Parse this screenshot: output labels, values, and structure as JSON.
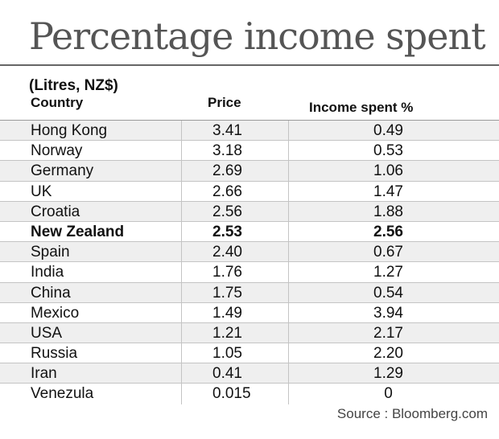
{
  "title": "Percentage income spent",
  "subtitle": "(Litres, NZ$)",
  "columns": {
    "country": "Country",
    "price": "Price",
    "income": "Income spent %"
  },
  "rows": [
    {
      "country": "Hong Kong",
      "price": "3.41",
      "income": "0.49"
    },
    {
      "country": "Norway",
      "price": "3.18",
      "income": "0.53"
    },
    {
      "country": "Germany",
      "price": "2.69",
      "income": "1.06"
    },
    {
      "country": "UK",
      "price": "2.66",
      "income": "1.47"
    },
    {
      "country": "Croatia",
      "price": "2.56",
      "income": "1.88"
    },
    {
      "country": "New Zealand",
      "price": "2.53",
      "income": "2.56",
      "highlight": true
    },
    {
      "country": "Spain",
      "price": "2.40",
      "income": "0.67"
    },
    {
      "country": "India",
      "price": "1.76",
      "income": "1.27"
    },
    {
      "country": "China",
      "price": "1.75",
      "income": "0.54"
    },
    {
      "country": "Mexico",
      "price": "1.49",
      "income": "3.94"
    },
    {
      "country": "USA",
      "price": "1.21",
      "income": "2.17"
    },
    {
      "country": "Russia",
      "price": "1.05",
      "income": "2.20"
    },
    {
      "country": "Iran",
      "price": "0.41",
      "income": "1.29"
    },
    {
      "country": "Venezula",
      "price": "0.015",
      "income": "0"
    }
  ],
  "source": "Source : Bloomberg.com"
}
